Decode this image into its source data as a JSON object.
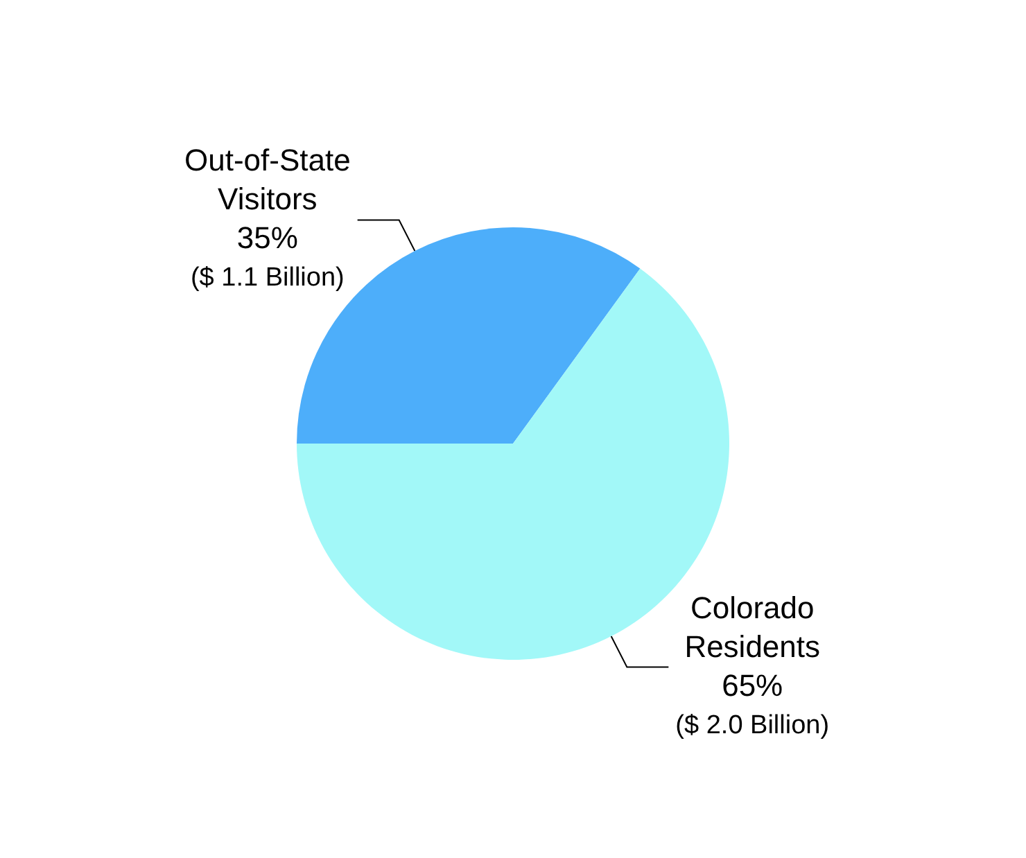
{
  "chart_data": {
    "type": "pie",
    "categories": [
      "Out-of-State Visitors",
      "Colorado Residents"
    ],
    "values": [
      35,
      65
    ],
    "colors": [
      "#4daefa",
      "#a2f8f8"
    ],
    "value_labels": [
      "35%",
      "65%"
    ],
    "annotations": [
      "($ 1.1 Billion)",
      "($ 2.0 Billion)"
    ],
    "legend": false
  }
}
